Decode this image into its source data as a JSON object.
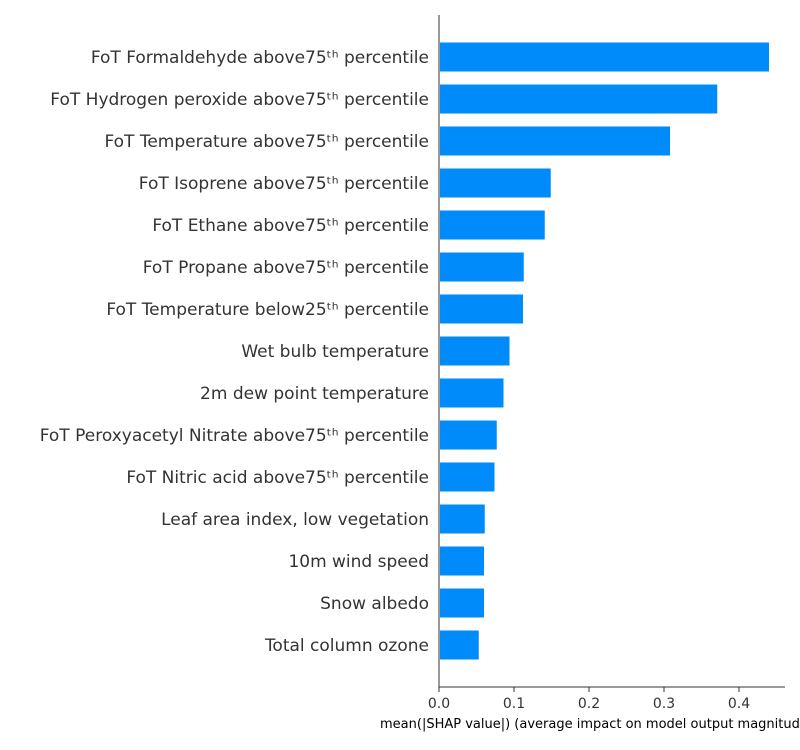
{
  "chart_data": {
    "type": "bar",
    "orientation": "horizontal",
    "categories": [
      "FoT Formaldehyde above75ᵗʰ percentile",
      "FoT Hydrogen peroxide above75ᵗʰ percentile",
      "FoT Temperature above75ᵗʰ percentile",
      "FoT Isoprene above75ᵗʰ percentile",
      "FoT Ethane above75ᵗʰ percentile",
      "FoT Propane above75ᵗʰ percentile",
      "FoT Temperature below25ᵗʰ percentile",
      "Wet bulb temperature",
      "2m dew point temperature",
      "FoT Peroxyacetyl Nitrate above75ᵗʰ percentile",
      "FoT Nitric acid above75ᵗʰ percentile",
      "Leaf area index, low vegetation",
      "10m wind speed",
      "Snow albedo",
      "Total column ozone"
    ],
    "values": [
      0.44,
      0.371,
      0.308,
      0.149,
      0.141,
      0.113,
      0.112,
      0.094,
      0.086,
      0.077,
      0.074,
      0.061,
      0.06,
      0.06,
      0.053
    ],
    "xlabel": "mean(|SHAP value|) (average impact on model output magnitude)",
    "ylabel": "",
    "xlim": [
      0,
      0.46
    ],
    "xticks": [
      0.0,
      0.1,
      0.2,
      0.3,
      0.4
    ],
    "xtick_labels": [
      "0.0",
      "0.1",
      "0.2",
      "0.3",
      "0.4"
    ],
    "grid": false,
    "bar_color": "#008bfb",
    "axis_color": "#333333"
  }
}
